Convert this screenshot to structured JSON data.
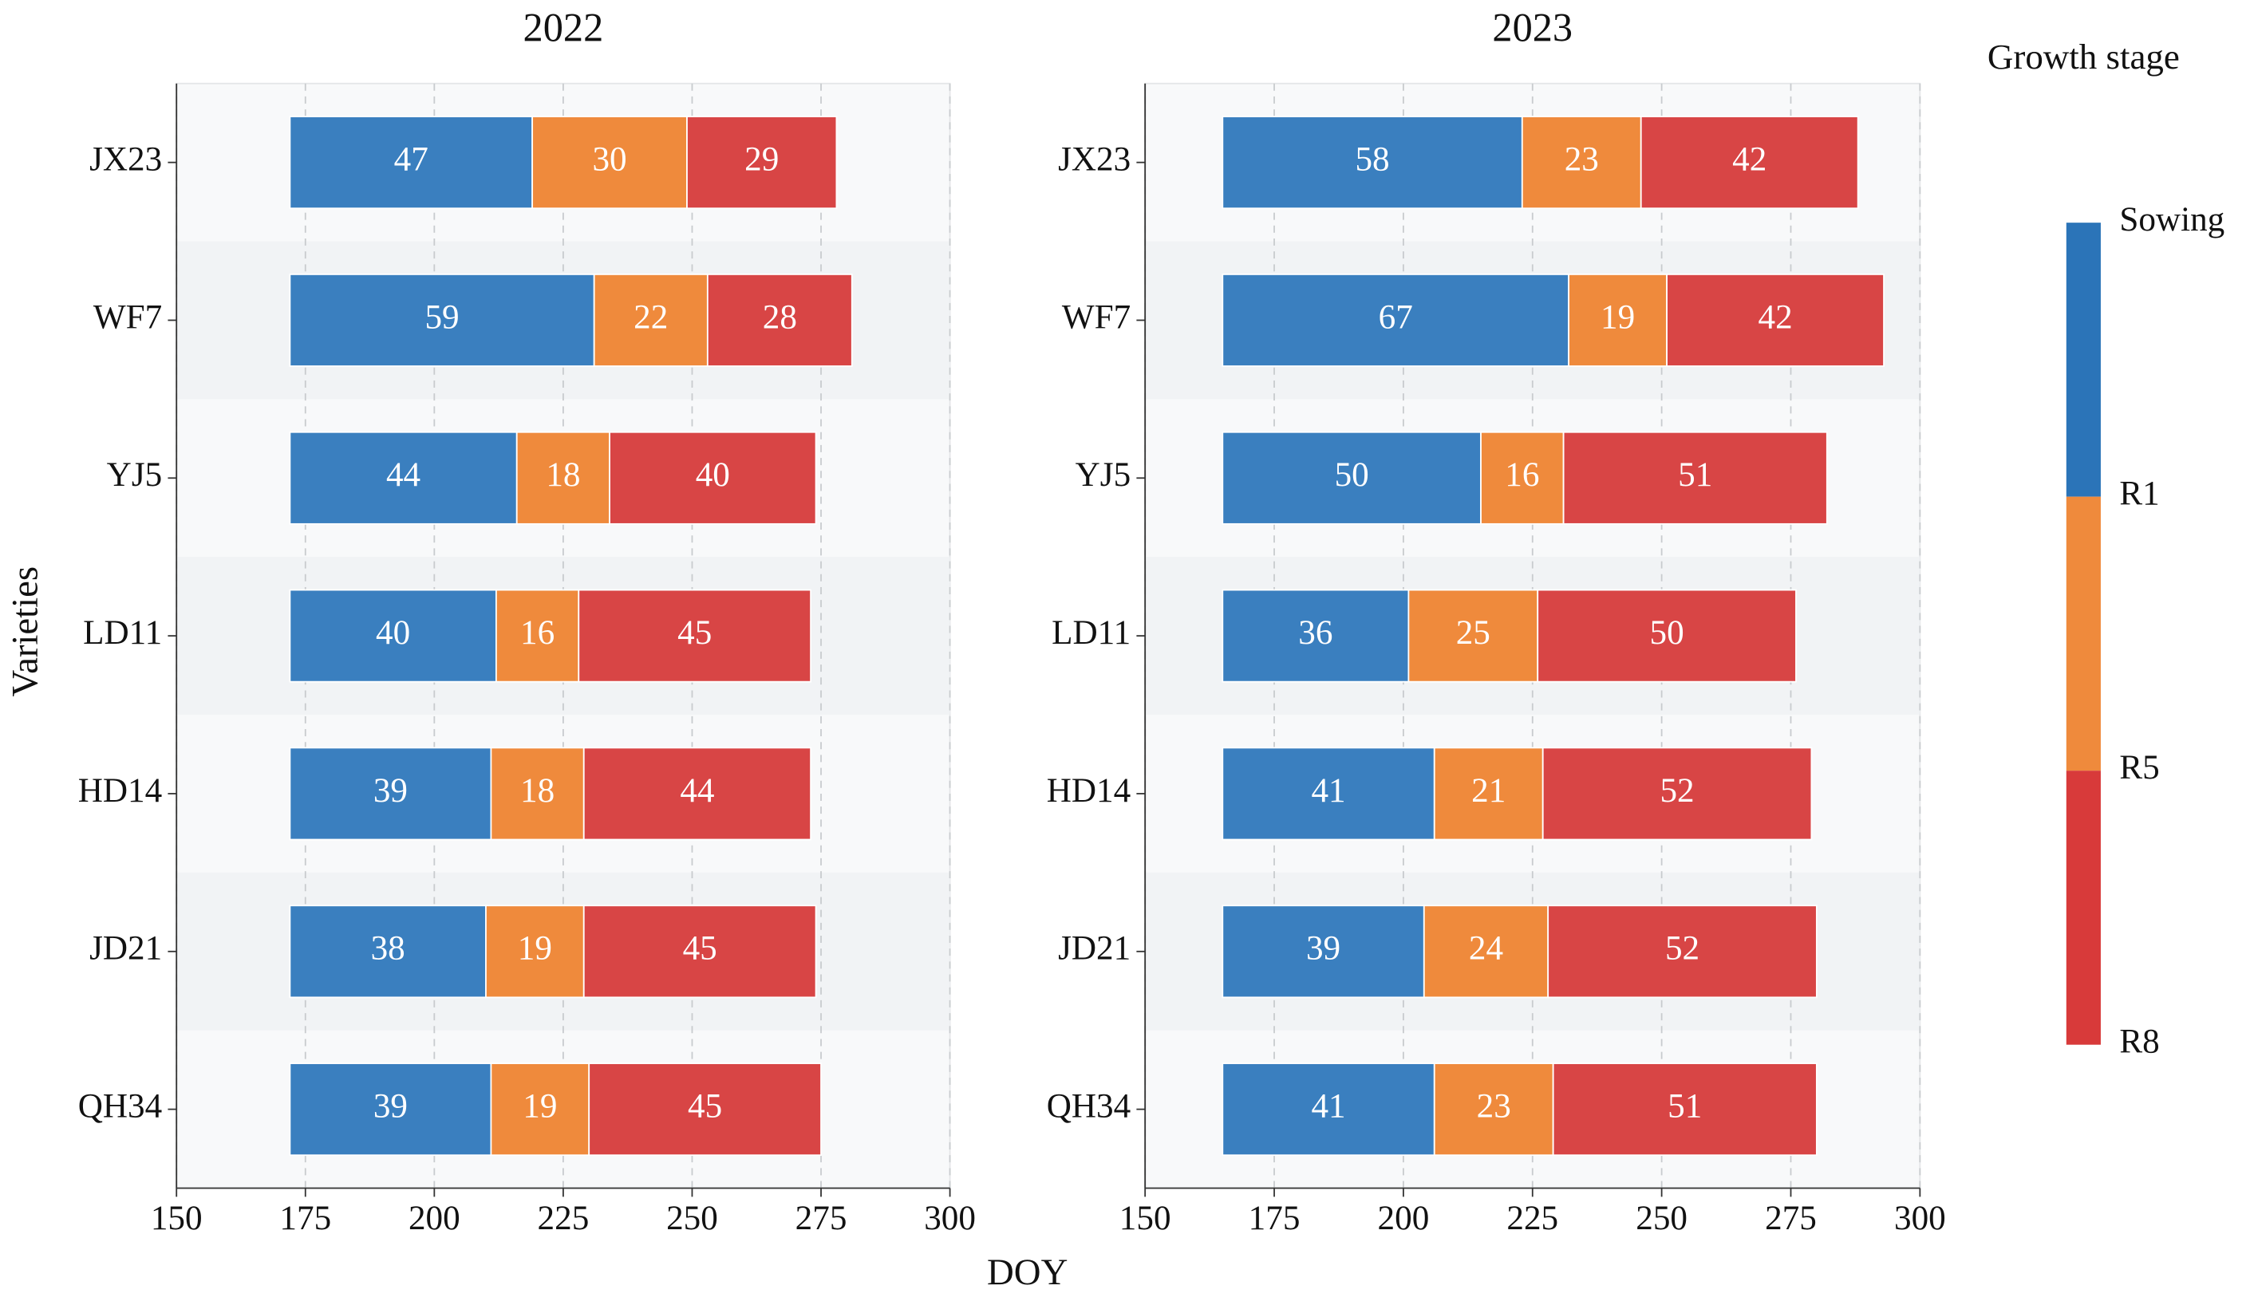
{
  "chart_data": [
    {
      "type": "bar",
      "orientation": "horizontal",
      "title": "2022",
      "ylabel": "Varieties",
      "categories": [
        "JX23",
        "WF7",
        "YJ5",
        "LD11",
        "HD14",
        "JD21",
        "QH34"
      ],
      "sowing": [
        172,
        172,
        172,
        172,
        172,
        172,
        172
      ],
      "series": [
        {
          "color": "#3a7fbf",
          "values": [
            47,
            59,
            44,
            40,
            39,
            38,
            39
          ]
        },
        {
          "color": "#ef8a3c",
          "values": [
            30,
            22,
            18,
            16,
            18,
            19,
            19
          ]
        },
        {
          "color": "#d84545",
          "values": [
            29,
            28,
            40,
            45,
            44,
            45,
            45
          ]
        }
      ],
      "xlim": [
        150,
        300
      ],
      "xticks": [
        150,
        175,
        200,
        225,
        250,
        275,
        300
      ],
      "grid": true
    },
    {
      "type": "bar",
      "orientation": "horizontal",
      "title": "2023",
      "xlabel": "DOY",
      "categories": [
        "JX23",
        "WF7",
        "YJ5",
        "LD11",
        "HD14",
        "JD21",
        "QH34"
      ],
      "sowing": [
        165,
        165,
        165,
        165,
        165,
        165,
        165
      ],
      "series": [
        {
          "color": "#3a7fbf",
          "values": [
            58,
            67,
            50,
            36,
            41,
            39,
            41
          ]
        },
        {
          "color": "#ef8a3c",
          "values": [
            23,
            19,
            16,
            25,
            21,
            24,
            23
          ]
        },
        {
          "color": "#d84545",
          "values": [
            42,
            42,
            51,
            50,
            52,
            52,
            51
          ]
        }
      ],
      "xlim": [
        150,
        300
      ],
      "xticks": [
        150,
        175,
        200,
        225,
        250,
        275,
        300
      ],
      "grid": true,
      "legend": {
        "title": "Growth stage",
        "labels": [
          "Sowing",
          "R1",
          "R5",
          "R8"
        ],
        "colors": [
          "#2b74b8",
          "#ef8a3c",
          "#d83a3a"
        ]
      }
    }
  ]
}
